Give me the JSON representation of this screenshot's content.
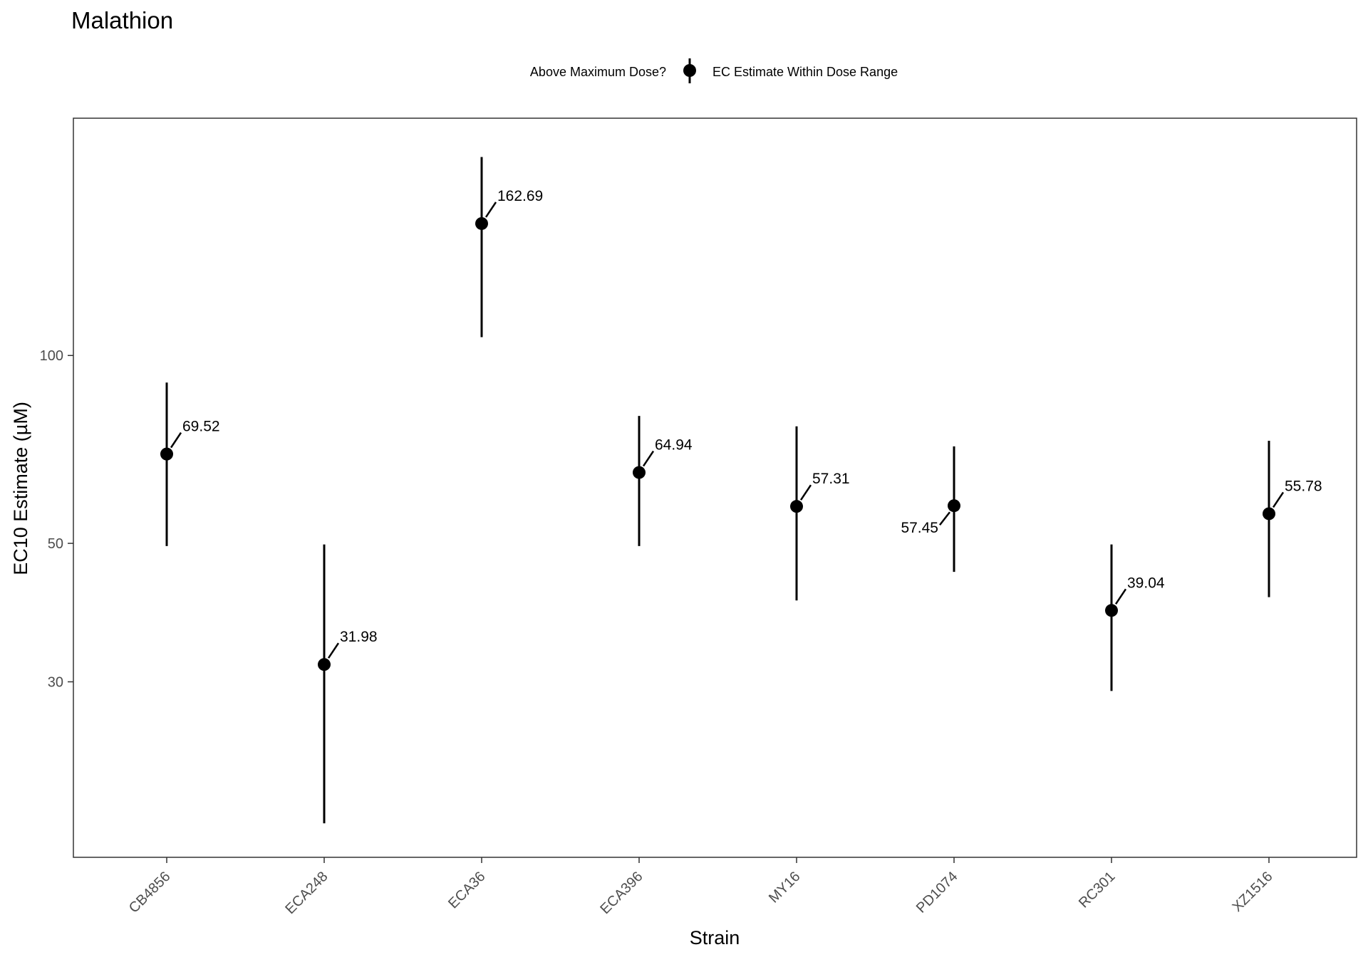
{
  "chart_data": {
    "type": "scatter",
    "title": "Malathion",
    "xlabel": "Strain",
    "ylabel": "EC10 Estimate (µM)",
    "y_scale": "log",
    "ylim": [
      15.7,
      240
    ],
    "y_ticks": [
      30,
      50,
      100
    ],
    "grid": false,
    "legend": {
      "position": "top",
      "title": "Above Maximum Dose?",
      "entries": [
        "EC Estimate Within Dose Range"
      ]
    },
    "categories": [
      "CB4856",
      "ECA248",
      "ECA36",
      "ECA396",
      "MY16",
      "PD1074",
      "RC301",
      "XZ1516"
    ],
    "series": [
      {
        "estimates": [
          69.52,
          31.98,
          162.69,
          64.94,
          57.31,
          57.45,
          39.04,
          55.78
        ],
        "lower": [
          49.5,
          17.8,
          107,
          49.5,
          40.5,
          45.0,
          29.0,
          41.0
        ],
        "upper": [
          90.5,
          49.8,
          208,
          80.0,
          77.0,
          71.5,
          49.8,
          73.0
        ],
        "labels": [
          "69.52",
          "31.98",
          "162.69",
          "64.94",
          "57.31",
          "57.45",
          "39.04",
          "55.78"
        ],
        "label_side": [
          "right",
          "right",
          "right",
          "right",
          "right",
          "left",
          "right",
          "right"
        ]
      }
    ]
  }
}
